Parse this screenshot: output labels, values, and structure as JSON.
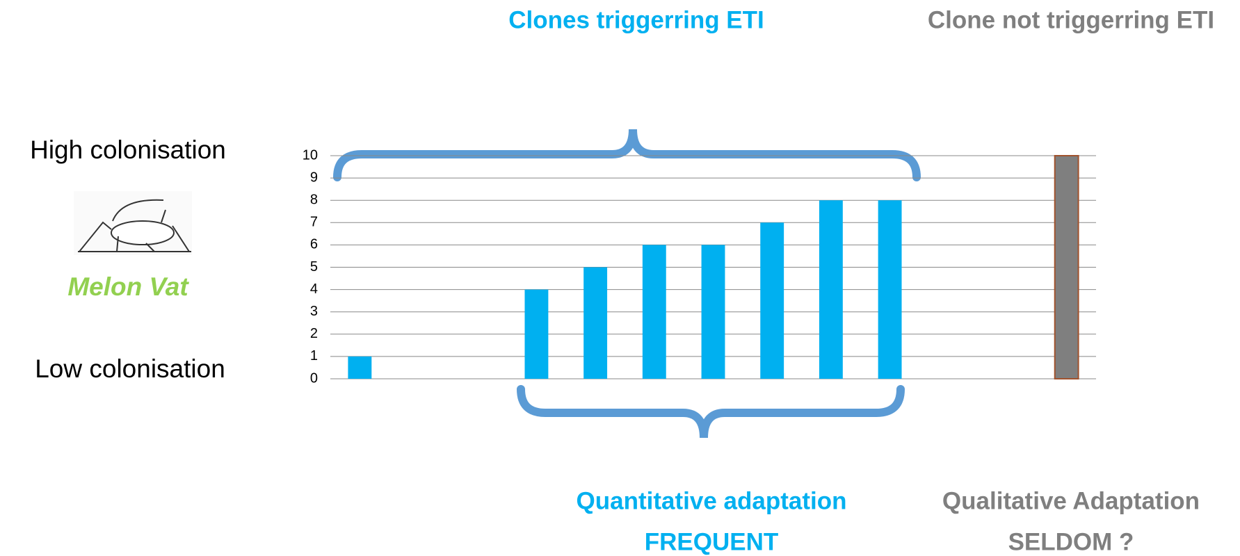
{
  "chart_data": {
    "type": "bar",
    "categories": [
      null,
      null,
      null,
      null,
      null,
      null,
      null,
      null,
      null,
      null,
      null,
      null,
      null
    ],
    "values": [
      1,
      null,
      null,
      4,
      5,
      6,
      6,
      7,
      8,
      8,
      null,
      null,
      10
    ],
    "colors": [
      "#00b0f0",
      null,
      null,
      "#00b0f0",
      "#00b0f0",
      "#00b0f0",
      "#00b0f0",
      "#00b0f0",
      "#00b0f0",
      "#00b0f0",
      null,
      null,
      "#7f7f7f"
    ],
    "ylim": [
      0,
      10
    ],
    "yticks": [
      0,
      1,
      2,
      3,
      4,
      5,
      6,
      7,
      8,
      9,
      10
    ],
    "grid": true
  },
  "labels": {
    "clones_triggering": "Clones triggerring ETI",
    "clone_not_triggering": "Clone not triggerring ETI",
    "high": "High colonisation",
    "species": "Melon Vat",
    "low": "Low colonisation",
    "quantitative": "Quantitative adaptation",
    "frequent": "FREQUENT",
    "qualitative": "Qualitative Adaptation",
    "seldom": "SELDOM ?"
  }
}
